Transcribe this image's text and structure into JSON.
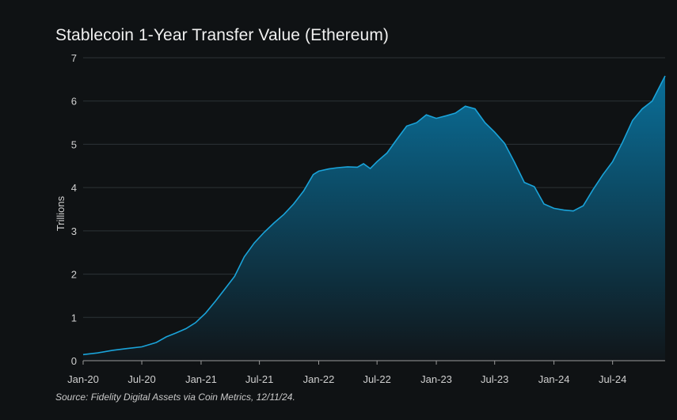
{
  "title": "Stablecoin 1-Year Transfer Value (Ethereum)",
  "source": "Source: Fidelity Digital Assets via Coin Metrics, 12/11/24.",
  "colors": {
    "background": "#0f1214",
    "line": "#1aa3d9",
    "fill_top": "#0a6f99",
    "fill_bottom": "#10161a",
    "grid": "#2c3236"
  },
  "chart_data": {
    "type": "area",
    "title": "Stablecoin 1-Year Transfer Value (Ethereum)",
    "ylabel": "Trillions",
    "xlabel": "",
    "ylim": [
      0,
      7
    ],
    "xlim": [
      "2020-01-01",
      "2024-12-11"
    ],
    "y_ticks": [
      0,
      1,
      2,
      3,
      4,
      5,
      6,
      7
    ],
    "x_ticks": [
      {
        "date": "2020-01-01",
        "label": "Jan-20"
      },
      {
        "date": "2020-07-01",
        "label": "Jul-20"
      },
      {
        "date": "2021-01-01",
        "label": "Jan-21"
      },
      {
        "date": "2021-07-01",
        "label": "Jul-21"
      },
      {
        "date": "2022-01-01",
        "label": "Jan-22"
      },
      {
        "date": "2022-07-01",
        "label": "Jul-22"
      },
      {
        "date": "2023-01-01",
        "label": "Jan-23"
      },
      {
        "date": "2023-07-01",
        "label": "Jul-23"
      },
      {
        "date": "2024-01-01",
        "label": "Jan-24"
      },
      {
        "date": "2024-07-01",
        "label": "Jul-24"
      }
    ],
    "grid": true,
    "legend": "none",
    "points": [
      [
        "2020-01-01",
        0.14
      ],
      [
        "2020-02-15",
        0.18
      ],
      [
        "2020-04-01",
        0.24
      ],
      [
        "2020-05-15",
        0.28
      ],
      [
        "2020-07-01",
        0.32
      ],
      [
        "2020-08-15",
        0.42
      ],
      [
        "2020-09-15",
        0.55
      ],
      [
        "2020-10-15",
        0.64
      ],
      [
        "2020-11-15",
        0.74
      ],
      [
        "2020-12-15",
        0.88
      ],
      [
        "2021-01-15",
        1.1
      ],
      [
        "2021-02-15",
        1.38
      ],
      [
        "2021-03-15",
        1.65
      ],
      [
        "2021-04-15",
        1.95
      ],
      [
        "2021-05-15",
        2.4
      ],
      [
        "2021-06-15",
        2.72
      ],
      [
        "2021-07-15",
        2.96
      ],
      [
        "2021-08-15",
        3.18
      ],
      [
        "2021-09-15",
        3.38
      ],
      [
        "2021-10-15",
        3.62
      ],
      [
        "2021-11-15",
        3.92
      ],
      [
        "2021-12-15",
        4.3
      ],
      [
        "2022-01-01",
        4.38
      ],
      [
        "2022-02-01",
        4.43
      ],
      [
        "2022-03-01",
        4.46
      ],
      [
        "2022-04-01",
        4.48
      ],
      [
        "2022-05-01",
        4.47
      ],
      [
        "2022-05-20",
        4.55
      ],
      [
        "2022-06-10",
        4.44
      ],
      [
        "2022-07-01",
        4.6
      ],
      [
        "2022-08-01",
        4.8
      ],
      [
        "2022-09-01",
        5.12
      ],
      [
        "2022-10-01",
        5.42
      ],
      [
        "2022-11-01",
        5.5
      ],
      [
        "2022-12-01",
        5.68
      ],
      [
        "2023-01-01",
        5.6
      ],
      [
        "2023-02-01",
        5.66
      ],
      [
        "2023-03-01",
        5.72
      ],
      [
        "2023-04-01",
        5.88
      ],
      [
        "2023-05-01",
        5.82
      ],
      [
        "2023-06-01",
        5.5
      ],
      [
        "2023-07-01",
        5.28
      ],
      [
        "2023-08-01",
        5.02
      ],
      [
        "2023-09-01",
        4.58
      ],
      [
        "2023-10-01",
        4.12
      ],
      [
        "2023-11-01",
        4.02
      ],
      [
        "2023-12-01",
        3.62
      ],
      [
        "2024-01-01",
        3.52
      ],
      [
        "2024-02-01",
        3.48
      ],
      [
        "2024-03-01",
        3.46
      ],
      [
        "2024-04-01",
        3.58
      ],
      [
        "2024-05-01",
        3.95
      ],
      [
        "2024-06-01",
        4.3
      ],
      [
        "2024-07-01",
        4.6
      ],
      [
        "2024-08-01",
        5.05
      ],
      [
        "2024-09-01",
        5.55
      ],
      [
        "2024-10-01",
        5.82
      ],
      [
        "2024-11-01",
        6.0
      ],
      [
        "2024-12-11",
        6.58
      ]
    ]
  }
}
